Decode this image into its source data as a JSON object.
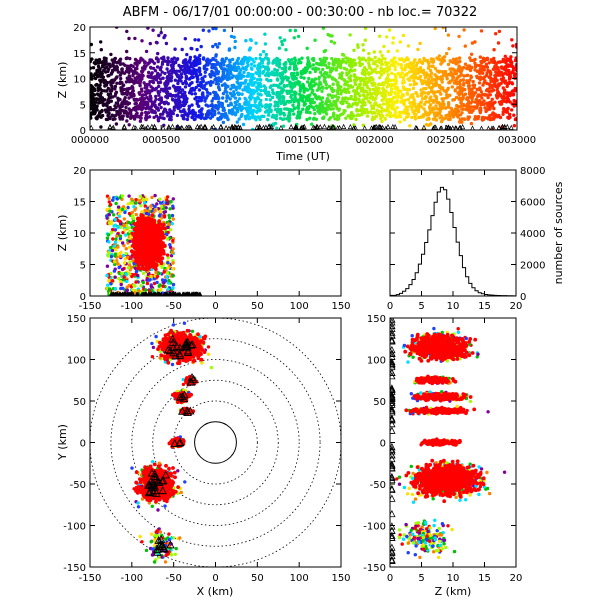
{
  "title": "ABFM - 06/17/01 00:00:00 - 00:30:00 - nb loc.=  70322",
  "chart_data": [
    {
      "id": "time-height",
      "type": "scatter",
      "title": "ABFM - 06/17/01 00:00:00 - 00:30:00 - nb loc.=  70322",
      "xlabel": "Time (UT)",
      "ylabel": "Z (km)",
      "xlim": [
        0,
        3000
      ],
      "ylim": [
        0,
        20
      ],
      "xticks": [
        0,
        500,
        1000,
        1500,
        2000,
        2500,
        3000
      ],
      "xtick_labels": [
        "000000",
        "000500",
        "001000",
        "001500",
        "002000",
        "002500",
        "003000"
      ],
      "yticks": [
        0,
        5,
        10,
        15,
        20
      ],
      "color_encoding": "time (rainbow: black-purple-blue-cyan-green-yellow-orange-red)",
      "source_height_range_km": [
        0,
        20
      ],
      "dense_height_range_km": [
        2,
        14
      ]
    },
    {
      "id": "x-height",
      "type": "scatter",
      "xlabel": "",
      "ylabel": "Z (km)",
      "xlim": [
        -150,
        150
      ],
      "ylim": [
        0,
        20
      ],
      "xticks": [
        -150,
        -100,
        -50,
        0,
        50,
        100,
        150
      ],
      "yticks": [
        0,
        5,
        10,
        15,
        20
      ],
      "clusters": [
        {
          "x_center": -80,
          "x_range": [
            -110,
            -20
          ],
          "z_range": [
            1,
            17
          ],
          "color": "#ff0000",
          "weight": 0.75
        },
        {
          "x_center": -95,
          "x_range": [
            -130,
            -60
          ],
          "z_range": [
            0,
            16
          ],
          "color": "mixed",
          "weight": 0.25
        }
      ]
    },
    {
      "id": "height-histogram",
      "type": "line",
      "xlabel": "",
      "ylabel": "number of sources",
      "xlim": [
        0,
        20
      ],
      "ylim": [
        0,
        8000
      ],
      "xticks": [
        0,
        5,
        10,
        15,
        20
      ],
      "yticks": [
        0,
        2000,
        4000,
        6000,
        8000
      ],
      "step": 0.5,
      "x": [
        0,
        0.5,
        1,
        1.5,
        2,
        2.5,
        3,
        3.5,
        4,
        4.5,
        5,
        5.5,
        6,
        6.5,
        7,
        7.5,
        8,
        8.5,
        9,
        9.5,
        10,
        10.5,
        11,
        11.5,
        12,
        12.5,
        13,
        13.5,
        14,
        14.5,
        15,
        15.5,
        16,
        16.5,
        17,
        17.5,
        18,
        18.5,
        19,
        19.5
      ],
      "values": [
        40,
        40,
        90,
        170,
        300,
        470,
        720,
        1050,
        1480,
        2020,
        2650,
        3400,
        4200,
        5100,
        5950,
        6600,
        6900,
        6750,
        6150,
        5300,
        4350,
        3420,
        2560,
        1800,
        1220,
        800,
        520,
        330,
        210,
        140,
        95,
        70,
        55,
        40,
        32,
        25,
        20,
        16,
        12,
        10
      ]
    },
    {
      "id": "plan-view",
      "type": "scatter",
      "xlabel": "X (km)",
      "ylabel": "Y (km)",
      "xlim": [
        -150,
        150
      ],
      "ylim": [
        -150,
        150
      ],
      "xticks": [
        -150,
        -100,
        -50,
        0,
        50,
        100,
        150
      ],
      "yticks": [
        -150,
        -100,
        -50,
        0,
        50,
        100,
        150
      ],
      "range_rings_km": [
        25,
        50,
        75,
        100,
        125,
        150
      ],
      "solid_ring_km": 25,
      "clusters": [
        {
          "x_center": -40,
          "y_center": 115,
          "x_radius": 38,
          "y_radius": 25,
          "color": "#ff0000"
        },
        {
          "x_center": -30,
          "y_center": 75,
          "x_radius": 10,
          "y_radius": 8,
          "color": "#ff0000"
        },
        {
          "x_center": -40,
          "y_center": 55,
          "x_radius": 14,
          "y_radius": 10,
          "color": "#ff0000"
        },
        {
          "x_center": -35,
          "y_center": 38,
          "x_radius": 12,
          "y_radius": 5,
          "color": "#ff0000"
        },
        {
          "x_center": -45,
          "y_center": 0,
          "x_radius": 14,
          "y_radius": 8,
          "color": "#ff0000"
        },
        {
          "x_center": -70,
          "y_center": -50,
          "x_radius": 32,
          "y_radius": 30,
          "color": "#ff0000"
        },
        {
          "x_center": -65,
          "y_center": -125,
          "x_radius": 22,
          "y_radius": 22,
          "color": "mixed"
        }
      ]
    },
    {
      "id": "height-y",
      "type": "scatter",
      "xlabel": "Z (km)",
      "ylabel": "",
      "xlim": [
        0,
        20
      ],
      "ylim": [
        -150,
        150
      ],
      "xticks": [
        0,
        5,
        10,
        15,
        20
      ],
      "yticks": [
        -150,
        -100,
        -50,
        0,
        50,
        100,
        150
      ],
      "clusters": [
        {
          "z_center": 8,
          "y_center": 115,
          "z_radius": 7,
          "y_radius": 22,
          "color": "#ff0000"
        },
        {
          "z_center": 7,
          "y_center": 75,
          "z_radius": 5,
          "y_radius": 6,
          "color": "#ff0000"
        },
        {
          "z_center": 8,
          "y_center": 55,
          "z_radius": 6,
          "y_radius": 7,
          "color": "#ff0000"
        },
        {
          "z_center": 8,
          "y_center": 38,
          "z_radius": 7,
          "y_radius": 5,
          "color": "#ff0000"
        },
        {
          "z_center": 8,
          "y_center": 0,
          "z_radius": 5,
          "y_radius": 5,
          "color": "#ff0000"
        },
        {
          "z_center": 9,
          "y_center": -45,
          "z_radius": 8,
          "y_radius": 28,
          "color": "#ff0000"
        },
        {
          "z_center": 6,
          "y_center": -115,
          "z_radius": 5,
          "y_radius": 25,
          "color": "mixed"
        }
      ]
    }
  ]
}
